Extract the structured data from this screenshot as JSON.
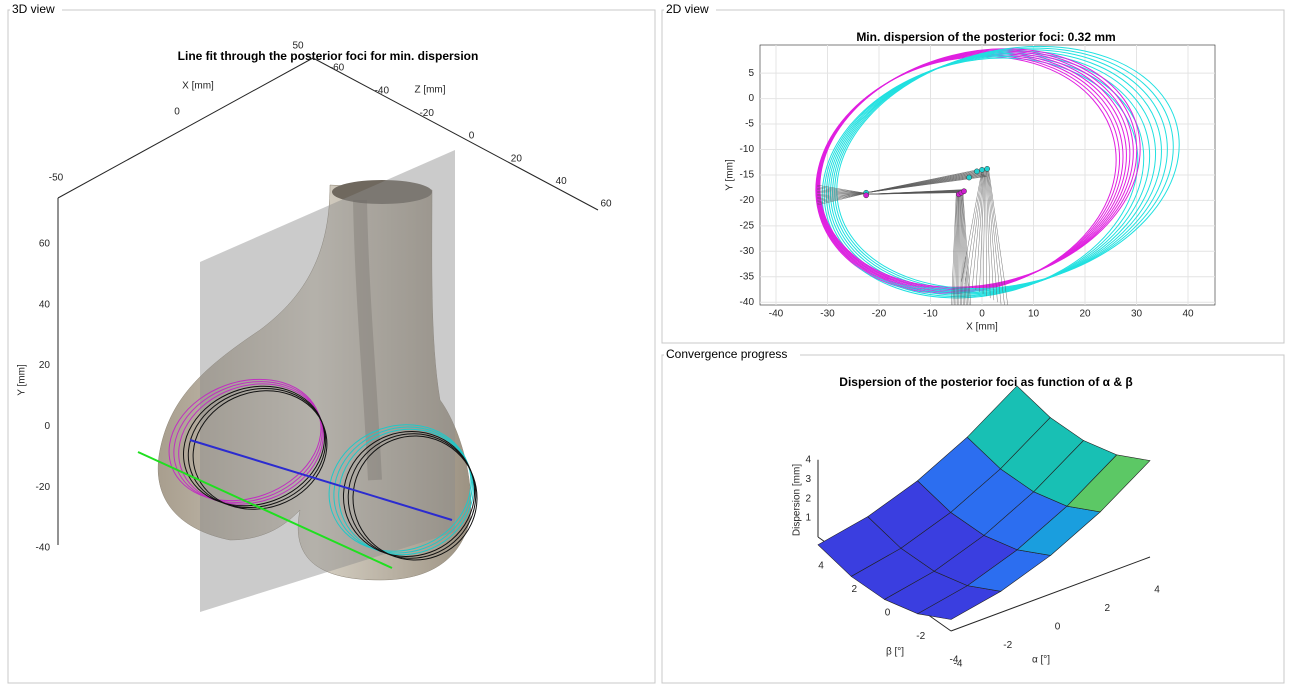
{
  "panels": [
    {
      "title": "3D view",
      "axes": {
        "title": "Line fit through the posterior foci for min. dispersion",
        "xlabel": "X [mm]",
        "ylabel": "Y [mm]",
        "zlabel": "Z [mm]",
        "xticks": [
          -50,
          0,
          50
        ],
        "zticks": [
          -60,
          -40,
          -20,
          0,
          20,
          40,
          60
        ],
        "yticks": [
          60,
          40,
          20,
          0,
          -20,
          -40
        ]
      }
    },
    {
      "title": "2D view",
      "axes": {
        "title": "Min. dispersion of the posterior foci: 0.32 mm",
        "xlabel": "X [mm]",
        "ylabel": "Y [mm]",
        "xticks": [
          -40,
          -30,
          -20,
          -10,
          0,
          10,
          20,
          30,
          40
        ],
        "yticks": [
          5,
          0,
          -5,
          -10,
          -15,
          -20,
          -25,
          -30,
          -35,
          -40
        ]
      }
    },
    {
      "title": "Convergence progress",
      "axes": {
        "title": "Dispersion of the posterior foci as function of α & β",
        "zlabel": "Dispersion [mm]",
        "xlabel": "α [°]",
        "ylabel": "β [°]",
        "zticks": [
          1,
          2,
          3,
          4
        ],
        "xticks": [
          -4,
          -2,
          0,
          2,
          4
        ],
        "yticks": [
          -4,
          -2,
          0,
          2,
          4
        ]
      }
    }
  ]
}
